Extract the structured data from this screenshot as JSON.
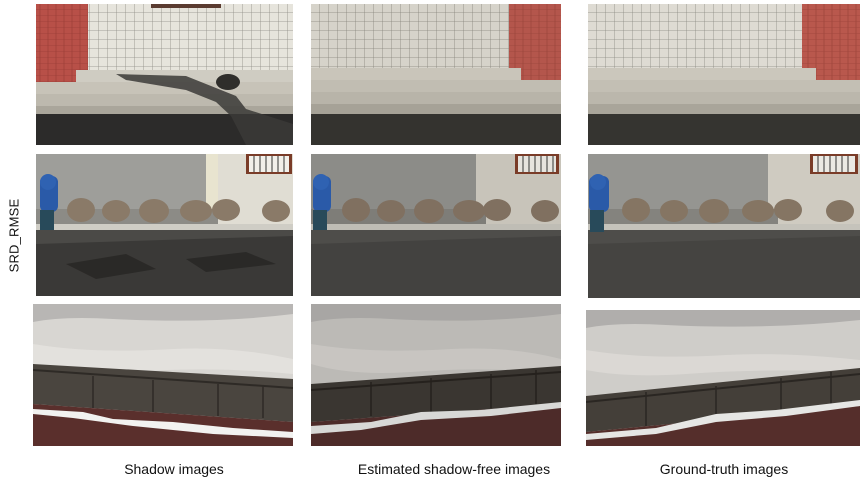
{
  "row_label": "SRD_RMSE",
  "columns": [
    {
      "caption": "Shadow images",
      "variant": "shadow"
    },
    {
      "caption": "Estimated shadow-free images",
      "variant": "estimated"
    },
    {
      "caption": "Ground-truth images",
      "variant": "groundtruth"
    }
  ],
  "rows": [
    {
      "scene": "steps-with-brick-wall"
    },
    {
      "scene": "child-by-building"
    },
    {
      "scene": "snow-on-curb"
    }
  ]
}
